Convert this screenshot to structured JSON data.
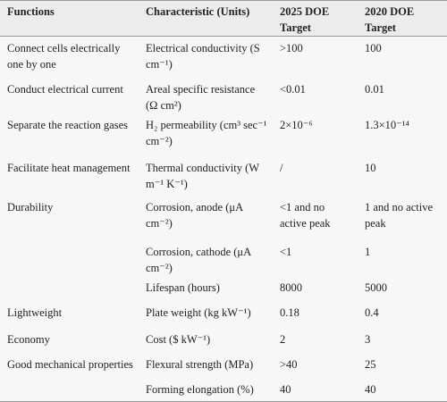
{
  "table": {
    "header": [
      "Functions",
      "Characteristic (Units)",
      "2025 DOE Target",
      "2020 DOE Target"
    ],
    "rows": [
      [
        "Connect cells electrically one by one",
        "Electrical conductivity (S cm⁻¹)",
        ">100",
        "100"
      ],
      [
        "Conduct electrical current",
        "Areal specific resistance (Ω cm²)",
        "<0.01",
        "0.01"
      ],
      [
        "Separate the reaction gases",
        "H₂ permeability (cm³ sec⁻¹ cm⁻²)",
        "2×10⁻⁶",
        "1.3×10⁻¹⁴"
      ],
      [
        "Facilitate heat management",
        "Thermal conductivity (W m⁻¹ K⁻¹)",
        "/",
        "10"
      ],
      [
        "Durability",
        "Corrosion, anode (μA cm⁻²)",
        "<1 and no active peak",
        "1 and no active peak"
      ],
      [
        null,
        "Corrosion, cathode (μA cm⁻²)",
        "<1",
        "1"
      ],
      [
        null,
        "Lifespan (hours)",
        "8000",
        "5000"
      ],
      [
        "Lightweight",
        "Plate weight (kg kW⁻¹)",
        "0.18",
        "0.4"
      ],
      [
        "Economy",
        "Cost ($ kW⁻¹)",
        "2",
        "3"
      ],
      [
        "Good mechanical properties",
        "Flexural strength (MPa)",
        ">40",
        "25"
      ],
      [
        null,
        "Forming elongation (%)",
        "40",
        "40"
      ]
    ]
  }
}
